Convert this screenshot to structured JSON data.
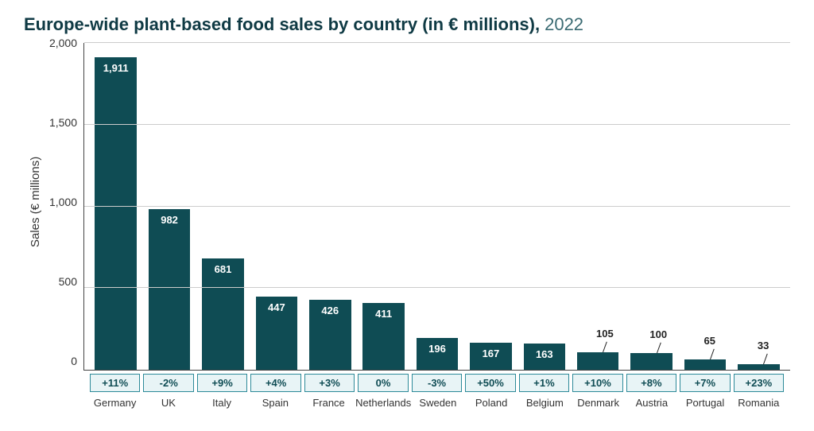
{
  "title": {
    "main": "Europe-wide plant-based food sales by country (in € millions),",
    "year": "2022",
    "main_color": "#0f3a44",
    "year_color": "#3a6a72",
    "fontsize": 22
  },
  "chart": {
    "type": "bar",
    "ylabel": "Sales (€ millions)",
    "ylim": [
      0,
      2000
    ],
    "yticks": [
      0,
      500,
      1000,
      1500,
      2000
    ],
    "ytick_labels": [
      "0",
      "500",
      "1,000",
      "1,500",
      "2,000"
    ],
    "grid_color": "#cccccc",
    "axis_color": "#444444",
    "background_color": "#ffffff",
    "bar_color": "#0f4c54",
    "bar_width": 0.78,
    "value_label_color_inside": "#ffffff",
    "value_label_color_outside": "#222222",
    "value_label_fontsize": 13,
    "value_label_fontweight": 700,
    "pct_box": {
      "border_color": "#2d8a99",
      "background_color": "#e8f4f6",
      "text_color": "#0f4c54",
      "fontsize": 13
    },
    "category_label_fontsize": 13,
    "categories": [
      "Germany",
      "UK",
      "Italy",
      "Spain",
      "France",
      "Netherlands",
      "Sweden",
      "Poland",
      "Belgium",
      "Denmark",
      "Austria",
      "Portugal",
      "Romania"
    ],
    "values": [
      1911,
      982,
      681,
      447,
      426,
      411,
      196,
      167,
      163,
      105,
      100,
      65,
      33
    ],
    "value_labels": [
      "1,911",
      "982",
      "681",
      "447",
      "426",
      "411",
      "196",
      "167",
      "163",
      "105",
      "100",
      "65",
      "33"
    ],
    "value_label_placement": [
      "inside",
      "inside",
      "inside",
      "inside",
      "inside",
      "inside",
      "inside",
      "inside",
      "inside",
      "outside",
      "outside",
      "outside",
      "outside"
    ],
    "pct_changes": [
      "+11%",
      "-2%",
      "+9%",
      "+4%",
      "+3%",
      "0%",
      "-3%",
      "+50%",
      "+1%",
      "+10%",
      "+8%",
      "+7%",
      "+23%"
    ]
  }
}
